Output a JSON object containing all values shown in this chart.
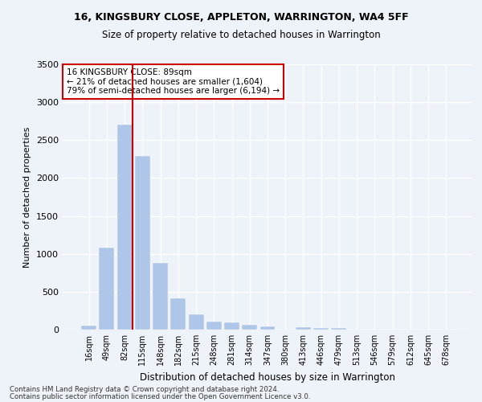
{
  "title1": "16, KINGSBURY CLOSE, APPLETON, WARRINGTON, WA4 5FF",
  "title2": "Size of property relative to detached houses in Warrington",
  "xlabel": "Distribution of detached houses by size in Warrington",
  "ylabel": "Number of detached properties",
  "categories": [
    "16sqm",
    "49sqm",
    "82sqm",
    "115sqm",
    "148sqm",
    "182sqm",
    "215sqm",
    "248sqm",
    "281sqm",
    "314sqm",
    "347sqm",
    "380sqm",
    "413sqm",
    "446sqm",
    "479sqm",
    "513sqm",
    "546sqm",
    "579sqm",
    "612sqm",
    "645sqm",
    "678sqm"
  ],
  "values": [
    50,
    1080,
    2700,
    2290,
    880,
    410,
    200,
    105,
    100,
    60,
    40,
    0,
    30,
    20,
    20,
    0,
    0,
    0,
    0,
    0,
    0
  ],
  "bar_color": "#aec6e8",
  "bar_edgecolor": "#aec6e8",
  "vline_color": "#cc0000",
  "annotation_text": "16 KINGSBURY CLOSE: 89sqm\n← 21% of detached houses are smaller (1,604)\n79% of semi-detached houses are larger (6,194) →",
  "annotation_box_edgecolor": "#cc0000",
  "ylim": [
    0,
    3500
  ],
  "yticks": [
    0,
    500,
    1000,
    1500,
    2000,
    2500,
    3000,
    3500
  ],
  "background_color": "#eef2f9",
  "grid_color": "#ffffff",
  "footer1": "Contains HM Land Registry data © Crown copyright and database right 2024.",
  "footer2": "Contains public sector information licensed under the Open Government Licence v3.0."
}
